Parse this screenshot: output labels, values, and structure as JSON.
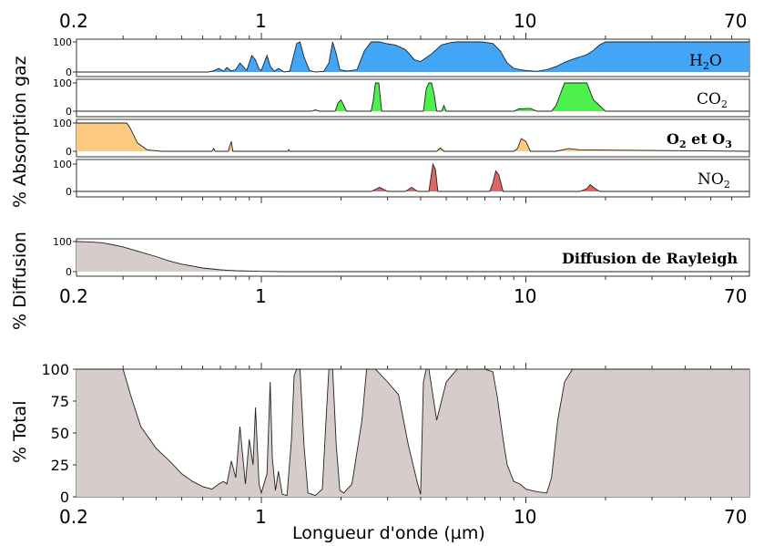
{
  "chart_data": [
    {
      "type": "area",
      "group": "absorption",
      "label": "H2O",
      "color": "#42a5f5",
      "ylim": [
        0,
        100
      ],
      "yticks": [
        "100",
        "0"
      ],
      "x": [
        0.2,
        0.63,
        0.66,
        0.69,
        0.72,
        0.74,
        0.77,
        0.8,
        0.83,
        0.88,
        0.92,
        0.95,
        0.98,
        1.0,
        1.05,
        1.08,
        1.12,
        1.16,
        1.22,
        1.28,
        1.33,
        1.36,
        1.4,
        1.45,
        1.52,
        1.6,
        1.72,
        1.8,
        1.86,
        1.92,
        1.98,
        2.1,
        2.3,
        2.45,
        2.6,
        2.7,
        2.8,
        2.95,
        3.2,
        3.5,
        3.8,
        4.0,
        4.4,
        4.8,
        5.2,
        5.5,
        5.8,
        6.2,
        6.8,
        7.5,
        8.0,
        8.5,
        9.0,
        9.5,
        10,
        11,
        12,
        13,
        14,
        15,
        16,
        17,
        18,
        19,
        20,
        22,
        25,
        30,
        40,
        50,
        60,
        70
      ],
      "y": [
        0,
        0,
        4,
        12,
        2,
        15,
        3,
        8,
        30,
        5,
        55,
        40,
        10,
        5,
        55,
        20,
        2,
        12,
        0,
        3,
        60,
        95,
        100,
        50,
        5,
        0,
        2,
        30,
        100,
        60,
        8,
        3,
        8,
        70,
        100,
        100,
        100,
        95,
        90,
        75,
        40,
        35,
        60,
        90,
        98,
        100,
        100,
        100,
        100,
        95,
        70,
        30,
        12,
        8,
        5,
        2,
        8,
        18,
        32,
        42,
        50,
        58,
        72,
        90,
        100,
        100,
        100,
        100,
        100,
        100,
        100,
        100
      ]
    },
    {
      "type": "area",
      "group": "absorption",
      "label": "CO2",
      "color": "#4ef04e",
      "ylim": [
        0,
        100
      ],
      "yticks": [
        "100",
        "0"
      ],
      "x": [
        0.2,
        1.55,
        1.6,
        1.65,
        1.9,
        1.95,
        2.0,
        2.05,
        2.1,
        2.5,
        2.6,
        2.65,
        2.7,
        2.78,
        2.85,
        3.2,
        3.6,
        4.1,
        4.2,
        4.3,
        4.4,
        4.5,
        4.6,
        4.8,
        4.9,
        5.0,
        5.3,
        9.0,
        9.4,
        10.4,
        11,
        12.5,
        13,
        14,
        15,
        16,
        17,
        18,
        20,
        70
      ],
      "y": [
        0,
        0,
        5,
        0,
        0,
        30,
        40,
        20,
        0,
        0,
        0,
        40,
        100,
        100,
        0,
        0,
        0,
        0,
        80,
        100,
        100,
        60,
        0,
        0,
        20,
        0,
        0,
        0,
        8,
        10,
        0,
        0,
        20,
        100,
        100,
        100,
        100,
        40,
        0,
        0
      ]
    },
    {
      "type": "area",
      "group": "absorption",
      "label": "O2 et O3",
      "color": "#fdca84",
      "ylim": [
        0,
        100
      ],
      "yticks": [
        "100",
        "0"
      ],
      "x": [
        0.2,
        0.3,
        0.31,
        0.32,
        0.34,
        0.37,
        0.42,
        0.6,
        0.65,
        0.66,
        0.67,
        0.75,
        0.76,
        0.77,
        0.78,
        1.0,
        1.26,
        1.27,
        1.28,
        2.5,
        3.2,
        4.6,
        4.75,
        4.9,
        9.0,
        9.3,
        9.6,
        10.0,
        10.4,
        13,
        14.5,
        16,
        70
      ],
      "y": [
        100,
        100,
        100,
        80,
        30,
        5,
        0,
        0,
        0,
        10,
        0,
        0,
        20,
        35,
        0,
        0,
        0,
        6,
        0,
        0,
        0,
        0,
        12,
        0,
        0,
        10,
        45,
        35,
        0,
        0,
        10,
        5,
        0
      ]
    },
    {
      "type": "area",
      "group": "absorption",
      "label": "NO2",
      "color": "#e06666",
      "ylim": [
        0,
        100
      ],
      "yticks": [
        "100",
        "0"
      ],
      "x": [
        0.2,
        2.6,
        2.8,
        3.0,
        3.5,
        3.7,
        3.9,
        4.3,
        4.45,
        4.5,
        4.55,
        4.65,
        5.5,
        7.3,
        7.5,
        7.7,
        7.9,
        8.2,
        16,
        17,
        17.5,
        18,
        19,
        70
      ],
      "y": [
        0,
        0,
        15,
        0,
        0,
        15,
        0,
        0,
        100,
        90,
        80,
        0,
        0,
        0,
        30,
        75,
        60,
        0,
        0,
        10,
        25,
        15,
        0,
        0
      ]
    },
    {
      "type": "area",
      "group": "diffusion",
      "label": "Diffusion de Rayleigh",
      "color": "#d6cdcb",
      "ylim": [
        0,
        100
      ],
      "yticks": [
        "100",
        "0"
      ],
      "x": [
        0.2,
        0.22,
        0.25,
        0.28,
        0.3,
        0.35,
        0.4,
        0.45,
        0.5,
        0.6,
        0.7,
        0.8,
        1.0,
        1.2,
        1.5,
        70
      ],
      "y": [
        100,
        99,
        96,
        88,
        82,
        65,
        50,
        35,
        25,
        12,
        6,
        3,
        1,
        0,
        0,
        0
      ]
    },
    {
      "type": "area",
      "group": "total",
      "label": "",
      "color": "#d6cdcb",
      "ylabel": "% Total",
      "xlabel": "Longueur d'onde (µm)",
      "ylim": [
        0,
        100
      ],
      "yticks": [
        "100",
        "75",
        "50",
        "25",
        "0"
      ],
      "x": [
        0.2,
        0.28,
        0.3,
        0.32,
        0.35,
        0.4,
        0.45,
        0.5,
        0.55,
        0.6,
        0.65,
        0.69,
        0.72,
        0.74,
        0.77,
        0.8,
        0.83,
        0.87,
        0.9,
        0.93,
        0.95,
        0.98,
        1.0,
        1.05,
        1.08,
        1.1,
        1.13,
        1.16,
        1.2,
        1.25,
        1.3,
        1.33,
        1.36,
        1.4,
        1.45,
        1.5,
        1.6,
        1.7,
        1.76,
        1.8,
        1.86,
        1.92,
        1.98,
        2.05,
        2.2,
        2.4,
        2.5,
        2.6,
        2.7,
        3.0,
        3.3,
        3.6,
        3.9,
        4.0,
        4.1,
        4.2,
        4.3,
        4.6,
        5.0,
        5.5,
        6.0,
        7.0,
        7.5,
        7.8,
        8.2,
        8.5,
        9.0,
        9.5,
        10,
        11,
        12,
        12.5,
        13.2,
        14,
        15,
        17,
        20,
        25,
        70
      ],
      "y": [
        100,
        100,
        100,
        80,
        55,
        38,
        28,
        18,
        12,
        8,
        6,
        10,
        12,
        10,
        28,
        15,
        55,
        10,
        45,
        25,
        70,
        10,
        3,
        18,
        90,
        30,
        5,
        20,
        2,
        1,
        45,
        95,
        100,
        100,
        40,
        3,
        1,
        6,
        65,
        100,
        100,
        40,
        5,
        3,
        10,
        60,
        100,
        100,
        100,
        90,
        80,
        40,
        10,
        2,
        90,
        100,
        100,
        60,
        90,
        100,
        100,
        100,
        98,
        78,
        45,
        25,
        12,
        10,
        6,
        4,
        3,
        15,
        60,
        90,
        100,
        100,
        100,
        100,
        100
      ]
    }
  ],
  "axes": {
    "x_ticks": [
      "0.2",
      "1",
      "10",
      "70"
    ],
    "xlabel": "Longueur d'onde (µm)",
    "ylabel_absorption": "% Absorption gaz",
    "ylabel_diffusion": "% Diffusion",
    "ylabel_total": "% Total"
  }
}
